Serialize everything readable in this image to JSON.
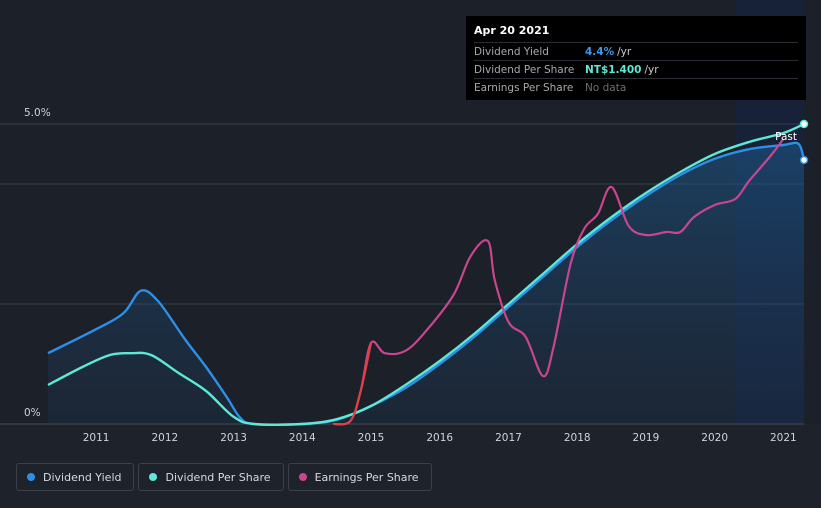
{
  "tooltip": {
    "date": "Apr 20 2021",
    "rows": [
      {
        "label": "Dividend Yield",
        "value": "4.4%",
        "unit": "/yr",
        "color": "#3d9ae8"
      },
      {
        "label": "Dividend Per Share",
        "value": "NT$1.400",
        "unit": "/yr",
        "color": "#5ee8d6"
      },
      {
        "label": "Earnings Per Share",
        "value": "No data",
        "unit": "",
        "color": "#6b6e73"
      }
    ]
  },
  "legend": [
    {
      "label": "Dividend Yield",
      "color": "#2d8fe8"
    },
    {
      "label": "Dividend Per Share",
      "color": "#5ee8d6"
    },
    {
      "label": "Earnings Per Share",
      "color": "#c7468f"
    }
  ],
  "chart_data": {
    "type": "line",
    "title": "",
    "past_label": "Past",
    "y_tick_labels": [
      "5.0%",
      "0%"
    ],
    "ylim": [
      0,
      5.0
    ],
    "xlim": [
      2010.3,
      2021.3
    ],
    "x_ticks": [
      2011,
      2012,
      2013,
      2014,
      2015,
      2016,
      2017,
      2018,
      2019,
      2020,
      2021
    ],
    "x_tick_labels": [
      "2011",
      "2012",
      "2013",
      "2014",
      "2015",
      "2016",
      "2017",
      "2018",
      "2019",
      "2020",
      "2021"
    ],
    "gridlines": [
      0,
      2.0,
      4.0,
      5.0
    ],
    "past_region_start": 2020.3,
    "series": [
      {
        "name": "Dividend Yield",
        "color": "#2d8fe8",
        "unit": "%",
        "x": [
          2010.3,
          2011.0,
          2011.4,
          2011.65,
          2011.9,
          2012.3,
          2012.6,
          2012.9,
          2013.1,
          2013.3,
          2014.0,
          2014.5,
          2015.0,
          2015.5,
          2016.0,
          2016.5,
          2017.0,
          2017.5,
          2018.0,
          2018.5,
          2019.0,
          2019.5,
          2020.0,
          2020.5,
          2021.0,
          2021.22,
          2021.3
        ],
        "values": [
          1.18,
          1.58,
          1.85,
          2.22,
          2.05,
          1.4,
          0.95,
          0.45,
          0.1,
          0.0,
          0.0,
          0.07,
          0.3,
          0.6,
          1.0,
          1.45,
          1.95,
          2.45,
          2.95,
          3.4,
          3.8,
          4.15,
          4.42,
          4.58,
          4.65,
          4.67,
          4.4
        ]
      },
      {
        "name": "Dividend Per Share",
        "color": "#5ee8d6",
        "unit": "NT$",
        "x": [
          2010.3,
          2010.8,
          2011.2,
          2011.5,
          2011.8,
          2012.2,
          2012.6,
          2013.0,
          2013.3,
          2014.0,
          2014.5,
          2015.0,
          2015.5,
          2016.0,
          2016.5,
          2017.0,
          2017.5,
          2018.0,
          2018.5,
          2019.0,
          2019.5,
          2020.0,
          2020.5,
          2021.0,
          2021.3
        ],
        "values": [
          0.65,
          0.95,
          1.15,
          1.18,
          1.15,
          0.85,
          0.55,
          0.12,
          0.0,
          0.0,
          0.08,
          0.3,
          0.65,
          1.05,
          1.5,
          2.0,
          2.5,
          3.0,
          3.45,
          3.85,
          4.2,
          4.5,
          4.7,
          4.85,
          5.0
        ]
      },
      {
        "name": "Earnings Per Share",
        "color": "#c7468f",
        "unit": "NT$",
        "x": [
          2014.45,
          2014.7,
          2014.85,
          2015.0,
          2015.2,
          2015.5,
          2015.8,
          2016.2,
          2016.45,
          2016.7,
          2016.8,
          2017.0,
          2017.25,
          2017.5,
          2017.65,
          2017.9,
          2018.1,
          2018.3,
          2018.5,
          2018.75,
          2019.0,
          2019.3,
          2019.5,
          2019.7,
          2020.0,
          2020.3,
          2020.5,
          2020.8,
          2021.0
        ],
        "values": [
          0.0,
          0.05,
          0.55,
          1.35,
          1.18,
          1.22,
          1.55,
          2.15,
          2.8,
          3.05,
          2.4,
          1.7,
          1.45,
          0.8,
          1.25,
          2.65,
          3.25,
          3.5,
          3.95,
          3.3,
          3.15,
          3.2,
          3.2,
          3.45,
          3.65,
          3.75,
          4.05,
          4.45,
          4.75
        ]
      }
    ]
  }
}
